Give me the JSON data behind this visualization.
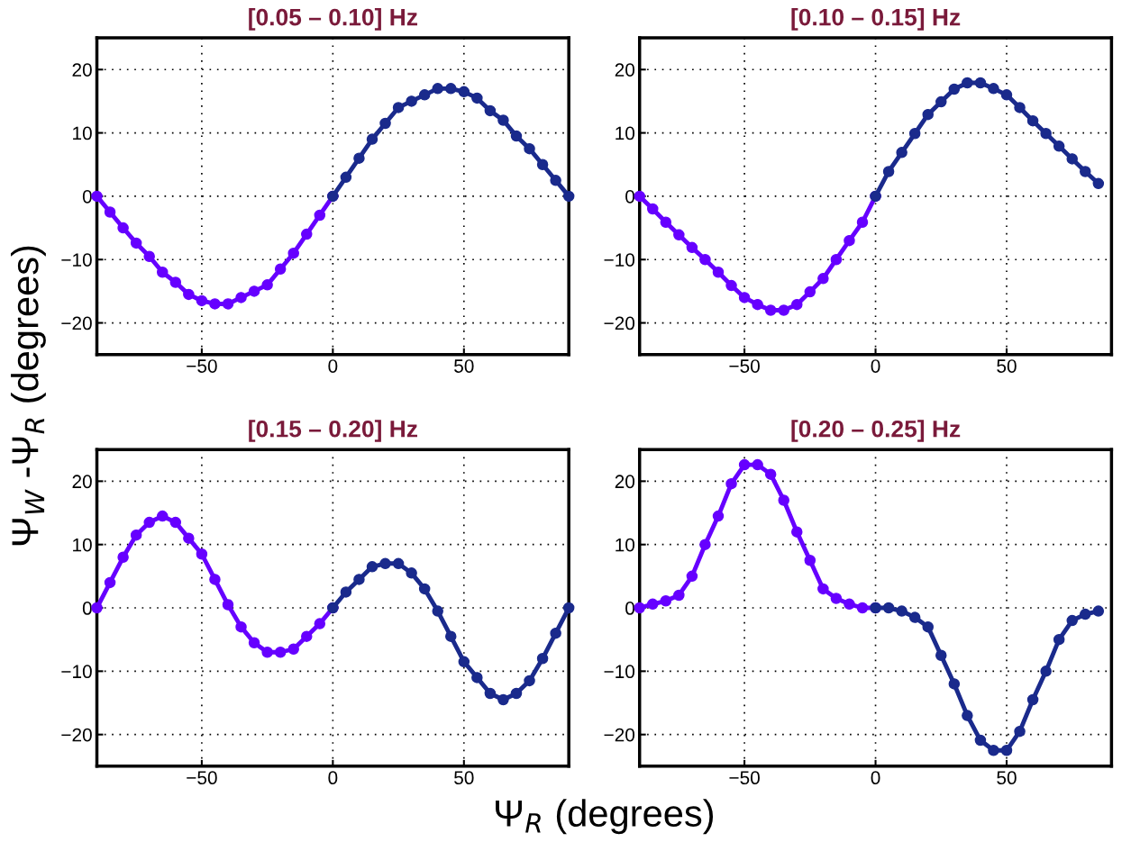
{
  "chart_data": [
    {
      "type": "line",
      "title": "[0.05 – 0.10] Hz",
      "ylabel": "Ψ$_{W}$ -Ψ$_{R}$ (degrees)",
      "xlim": [
        -90,
        90
      ],
      "ylim": [
        -25,
        25
      ],
      "xticks": [
        -50,
        0,
        50
      ],
      "yticks": [
        -20,
        -10,
        0,
        10,
        20
      ],
      "grid": true,
      "marker": "circle",
      "line_style": "solid",
      "series": [
        {
          "color": "#6600ff",
          "x": [
            -90,
            -85,
            -80,
            -75,
            -70,
            -65,
            -60,
            -55,
            -50,
            -45,
            -40,
            -35,
            -30,
            -25,
            -20,
            -15,
            -10,
            -5,
            0
          ],
          "values": [
            0,
            -2.5,
            -5,
            -7.4,
            -9.5,
            -12,
            -13.6,
            -15.5,
            -16.5,
            -17,
            -17,
            -16,
            -15,
            -14,
            -11.5,
            -9,
            -6,
            -3,
            0
          ]
        },
        {
          "color": "#1a2a8c",
          "x": [
            0,
            5,
            10,
            15,
            20,
            25,
            30,
            35,
            40,
            45,
            50,
            55,
            60,
            65,
            70,
            75,
            80,
            85,
            90
          ],
          "values": [
            0,
            3,
            6,
            9,
            11.5,
            14,
            15,
            16,
            17,
            17,
            16.5,
            15.5,
            13.5,
            12,
            9.5,
            7.5,
            5,
            2.5,
            0
          ]
        }
      ]
    },
    {
      "type": "line",
      "title": "[0.10 – 0.15] Hz",
      "xlim": [
        -90,
        90
      ],
      "ylim": [
        -25,
        25
      ],
      "xticks": [
        -50,
        0,
        50
      ],
      "yticks": [
        -20,
        -10,
        0,
        10,
        20
      ],
      "grid": true,
      "marker": "circle",
      "line_style": "solid",
      "series": [
        {
          "color": "#6600ff",
          "x": [
            -90,
            -85,
            -80,
            -75,
            -70,
            -65,
            -60,
            -55,
            -50,
            -45,
            -40,
            -35,
            -30,
            -25,
            -20,
            -15,
            -10,
            -5,
            0
          ],
          "values": [
            0,
            -2,
            -4.1,
            -6.1,
            -8.1,
            -10,
            -12,
            -14.1,
            -16,
            -17.1,
            -18,
            -18,
            -17.1,
            -15.1,
            -13,
            -10,
            -7,
            -4.1,
            0
          ]
        },
        {
          "color": "#1a2a8c",
          "x": [
            0,
            5,
            10,
            15,
            20,
            25,
            30,
            35,
            40,
            45,
            50,
            55,
            60,
            65,
            70,
            75,
            80,
            85
          ],
          "values": [
            0,
            3.9,
            6.9,
            9.9,
            12.9,
            14.9,
            16.9,
            17.9,
            17.9,
            17,
            16,
            14,
            11.9,
            9.9,
            7.9,
            5.9,
            3.9,
            2
          ]
        }
      ]
    },
    {
      "type": "line",
      "title": "[0.15 – 0.20] Hz",
      "xlabel": "Ψ$_{R}$ (degrees)",
      "xlim": [
        -90,
        90
      ],
      "ylim": [
        -25,
        25
      ],
      "xticks": [
        -50,
        0,
        50
      ],
      "yticks": [
        -20,
        -10,
        0,
        10,
        20
      ],
      "grid": true,
      "marker": "circle",
      "line_style": "solid",
      "series": [
        {
          "color": "#6600ff",
          "x": [
            -90,
            -85,
            -80,
            -75,
            -70,
            -65,
            -60,
            -55,
            -50,
            -45,
            -40,
            -35,
            -30,
            -25,
            -20,
            -15,
            -10,
            -5,
            0
          ],
          "values": [
            0,
            4,
            8,
            11.5,
            13.5,
            14.5,
            13.5,
            11,
            8.5,
            4.5,
            0.5,
            -3,
            -5.5,
            -7,
            -7,
            -6.5,
            -4.5,
            -2.5,
            0
          ]
        },
        {
          "color": "#1a2a8c",
          "x": [
            0,
            5,
            10,
            15,
            20,
            25,
            30,
            35,
            40,
            45,
            50,
            55,
            60,
            65,
            70,
            75,
            80,
            85,
            90
          ],
          "values": [
            0,
            2.5,
            4.5,
            6.5,
            7,
            7,
            5.5,
            3,
            -0.5,
            -4.5,
            -8.5,
            -11,
            -13.5,
            -14.5,
            -13.5,
            -11.5,
            -8,
            -4,
            0
          ]
        }
      ]
    },
    {
      "type": "line",
      "title": "[0.20 – 0.25] Hz",
      "xlim": [
        -90,
        90
      ],
      "ylim": [
        -25,
        25
      ],
      "xticks": [
        -50,
        0,
        50
      ],
      "yticks": [
        -20,
        -10,
        0,
        10,
        20
      ],
      "grid": true,
      "marker": "circle",
      "line_style": "solid",
      "series": [
        {
          "color": "#6600ff",
          "x": [
            -90,
            -85,
            -80,
            -75,
            -70,
            -65,
            -60,
            -55,
            -50,
            -45,
            -40,
            -35,
            -30,
            -25,
            -20,
            -15,
            -10,
            -5,
            0
          ],
          "values": [
            0,
            0.6,
            1.1,
            2,
            5,
            10,
            14.5,
            19.6,
            22.6,
            22.6,
            21.1,
            17,
            12,
            7.5,
            3,
            1.5,
            0.6,
            0,
            0
          ]
        },
        {
          "color": "#1a2a8c",
          "x": [
            0,
            5,
            10,
            15,
            20,
            25,
            30,
            35,
            40,
            45,
            50,
            55,
            60,
            65,
            70,
            75,
            80,
            85
          ],
          "values": [
            0,
            0,
            -0.5,
            -1.5,
            -3,
            -7.5,
            -12,
            -17,
            -20.9,
            -22.5,
            -22.5,
            -19.5,
            -14.5,
            -10,
            -5,
            -2,
            -1,
            -0.5
          ]
        }
      ]
    }
  ]
}
